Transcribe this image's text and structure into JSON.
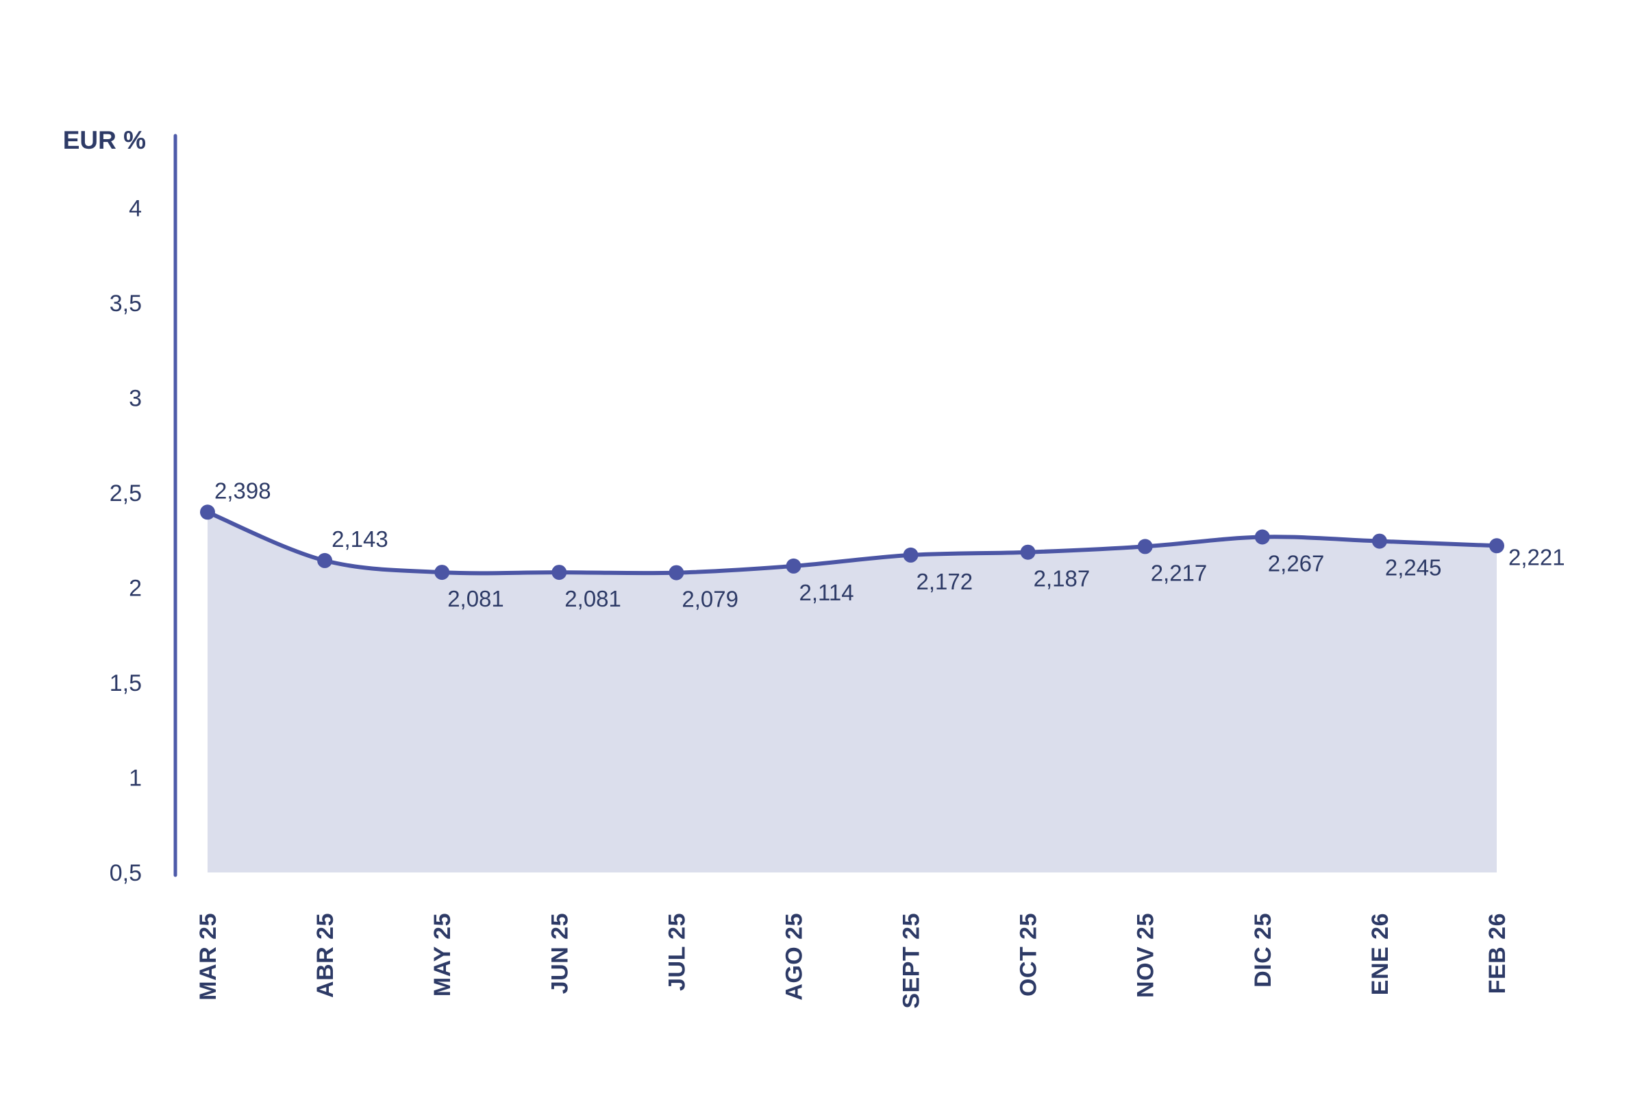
{
  "page": {
    "background": "#FFFFFF"
  },
  "chart_data": {
    "type": "area",
    "title": "",
    "y_axis_title": "EUR %",
    "categories": [
      "MAR 25",
      "ABR 25",
      "MAY 25",
      "JUN 25",
      "JUL 25",
      "AGO 25",
      "SEPT 25",
      "OCT 25",
      "NOV 25",
      "DIC 25",
      "ENE 26",
      "FEB 26"
    ],
    "series": [
      {
        "name": "EUR %",
        "values": [
          2.398,
          2.143,
          2.081,
          2.081,
          2.079,
          2.114,
          2.172,
          2.187,
          2.217,
          2.267,
          2.245,
          2.221
        ],
        "value_labels": [
          "2,398",
          "2,143",
          "2,081",
          "2,081",
          "2,079",
          "2,114",
          "2,172",
          "2,187",
          "2,217",
          "2,267",
          "2,245",
          "2,221"
        ],
        "label_positions": [
          "above",
          "above",
          "below",
          "below",
          "below",
          "below",
          "below",
          "below",
          "below",
          "below",
          "below",
          "right"
        ]
      }
    ],
    "y_ticks": [
      4,
      3.5,
      3,
      2.5,
      2,
      1.5,
      1,
      0.5
    ],
    "y_tick_labels": [
      "4",
      "3,5",
      "3",
      "2,5",
      "2",
      "1,5",
      "1",
      "0,5"
    ],
    "ylim": [
      0.5,
      4
    ],
    "grid": false,
    "legend": false,
    "area_fill": true,
    "line_smooth": true,
    "colors": {
      "line": "#4B55A4",
      "marker": "#4B55A4",
      "area": "#DBDEEC",
      "axis": "#4D5AA9",
      "text": "#2D3A66"
    }
  }
}
